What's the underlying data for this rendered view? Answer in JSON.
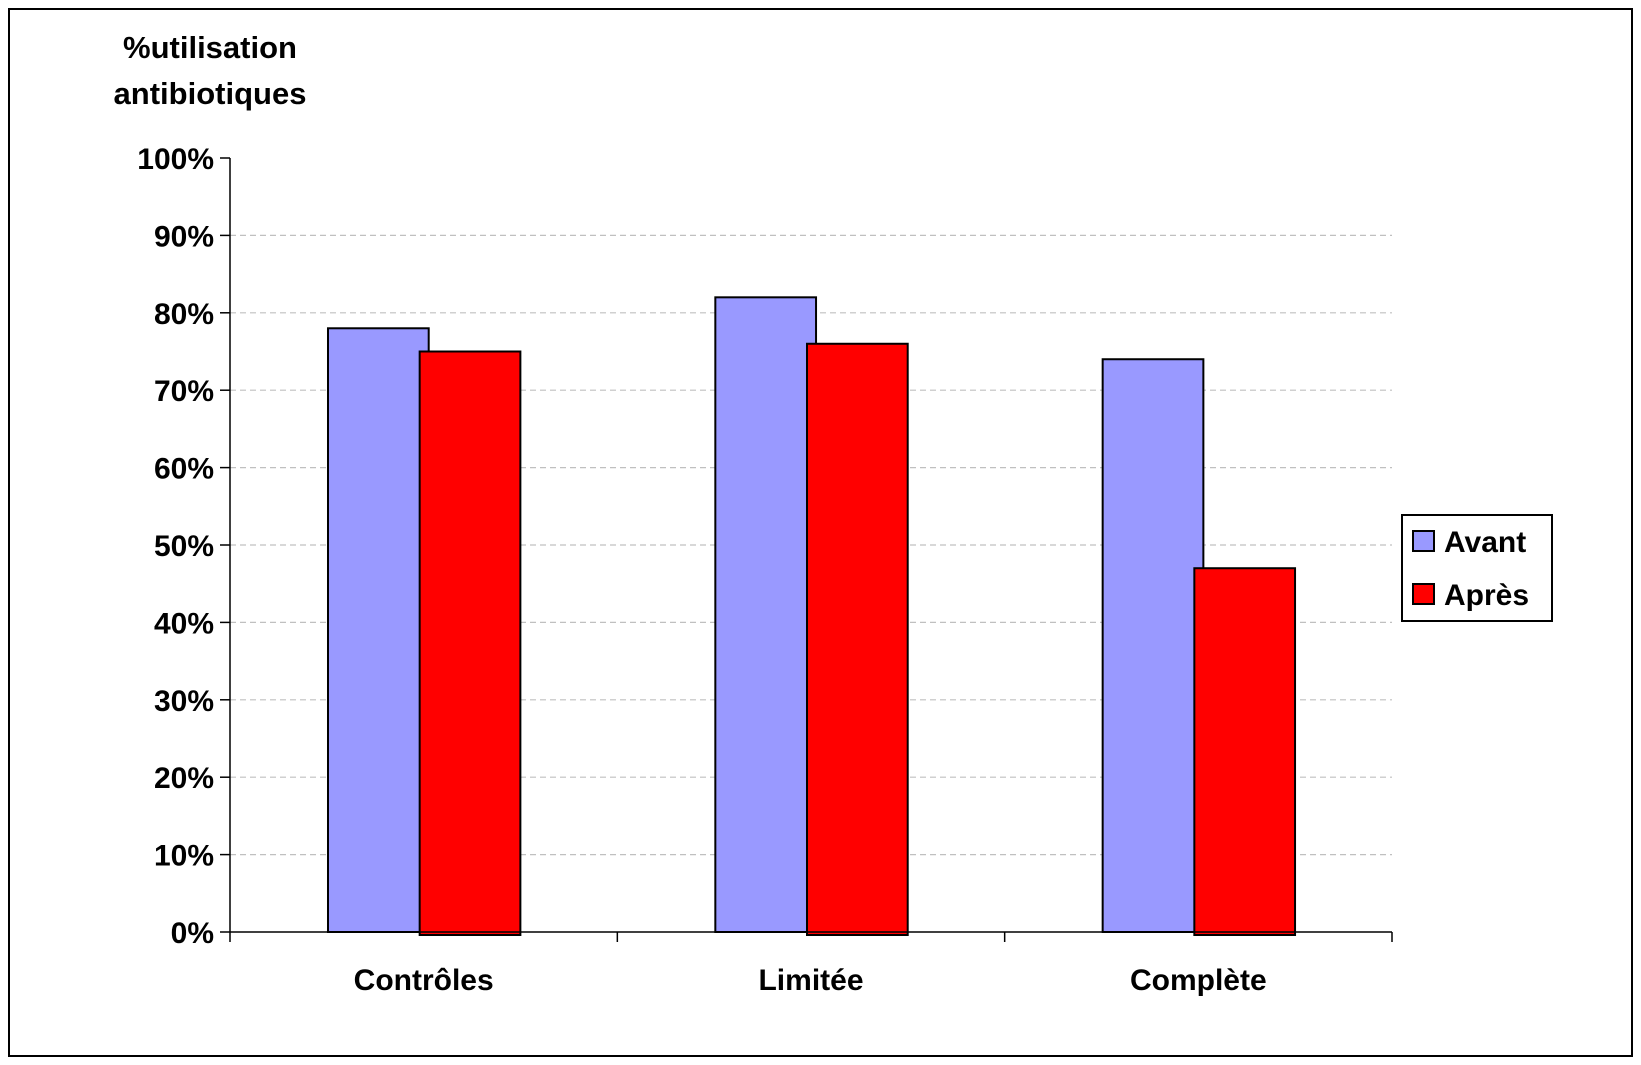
{
  "chart_data": {
    "type": "bar",
    "ylabel_lines": [
      "%utilisation",
      "antibiotiques"
    ],
    "categories": [
      "Contrôles",
      "Limitée",
      "Complète"
    ],
    "series": [
      {
        "name": "Avant",
        "color": "#9999ff",
        "values": [
          78,
          82,
          74
        ]
      },
      {
        "name": "Après",
        "color": "#ff0000",
        "values": [
          75,
          76,
          47
        ]
      }
    ],
    "ylim": [
      0,
      100
    ],
    "y_ticks": [
      0,
      10,
      20,
      30,
      40,
      50,
      60,
      70,
      80,
      90,
      100
    ],
    "y_tick_suffix": "%",
    "grid": "horizontal-dashed",
    "legend_position": "right"
  }
}
